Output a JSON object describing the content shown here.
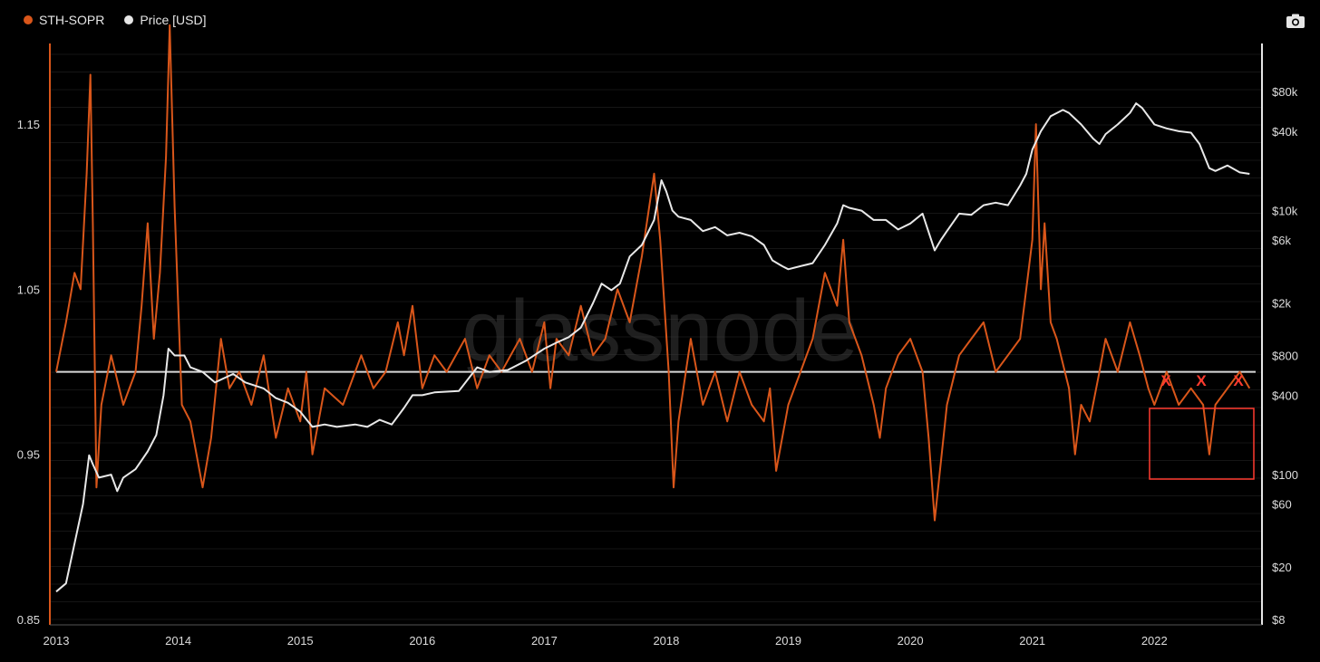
{
  "legend": [
    {
      "label": "STH-SOPR",
      "color": "#d9561a"
    },
    {
      "label": "Price [USD]",
      "color": "#e6e6e6"
    }
  ],
  "toolbar": {
    "icon": "camera-icon"
  },
  "watermark": "glassnode",
  "annotations": {
    "x_marks": [
      "X",
      "X",
      "X"
    ],
    "box": "highlight-rectangle"
  },
  "chart_data": {
    "type": "line",
    "x_ticks": [
      "2013",
      "2014",
      "2015",
      "2016",
      "2017",
      "2018",
      "2019",
      "2020",
      "2021",
      "2022"
    ],
    "xlim": [
      2013.0,
      2022.83
    ],
    "left_axis": {
      "ticks": [
        "0.85",
        "0.95",
        "1.05",
        "1.15"
      ],
      "ylim": [
        0.85,
        1.2
      ],
      "reference_line": 1.0
    },
    "right_axis": {
      "scale": "log",
      "ticks": [
        "$8",
        "$20",
        "$60",
        "$100",
        "$400",
        "$800",
        "$2k",
        "$6k",
        "$10k",
        "$40k",
        "$80k"
      ],
      "tick_values": [
        8,
        20,
        60,
        100,
        400,
        800,
        2000,
        6000,
        10000,
        40000,
        80000
      ]
    },
    "series": [
      {
        "name": "STH-SOPR",
        "color": "#d9561a",
        "axis": "left",
        "x": [
          2013.0,
          2013.08,
          2013.15,
          2013.2,
          2013.25,
          2013.28,
          2013.3,
          2013.33,
          2013.37,
          2013.45,
          2013.55,
          2013.65,
          2013.7,
          2013.75,
          2013.8,
          2013.85,
          2013.9,
          2013.93,
          2013.97,
          2014.03,
          2014.1,
          2014.2,
          2014.27,
          2014.35,
          2014.42,
          2014.5,
          2014.6,
          2014.7,
          2014.8,
          2014.9,
          2015.0,
          2015.05,
          2015.1,
          2015.2,
          2015.35,
          2015.5,
          2015.6,
          2015.7,
          2015.8,
          2015.85,
          2015.92,
          2016.0,
          2016.1,
          2016.2,
          2016.35,
          2016.45,
          2016.55,
          2016.65,
          2016.8,
          2016.9,
          2017.0,
          2017.05,
          2017.1,
          2017.2,
          2017.3,
          2017.4,
          2017.5,
          2017.6,
          2017.7,
          2017.8,
          2017.9,
          2017.95,
          2018.02,
          2018.06,
          2018.1,
          2018.2,
          2018.3,
          2018.4,
          2018.5,
          2018.6,
          2018.7,
          2018.8,
          2018.85,
          2018.9,
          2019.0,
          2019.1,
          2019.2,
          2019.3,
          2019.4,
          2019.45,
          2019.5,
          2019.6,
          2019.7,
          2019.75,
          2019.8,
          2019.9,
          2020.0,
          2020.1,
          2020.15,
          2020.2,
          2020.3,
          2020.4,
          2020.5,
          2020.6,
          2020.7,
          2020.8,
          2020.9,
          2020.95,
          2021.0,
          2021.03,
          2021.07,
          2021.1,
          2021.15,
          2021.2,
          2021.3,
          2021.35,
          2021.4,
          2021.47,
          2021.55,
          2021.6,
          2021.7,
          2021.8,
          2021.88,
          2021.95,
          2022.0,
          2022.1,
          2022.2,
          2022.3,
          2022.4,
          2022.45,
          2022.5,
          2022.6,
          2022.7,
          2022.78
        ],
        "y": [
          1.0,
          1.03,
          1.06,
          1.05,
          1.12,
          1.18,
          1.09,
          0.93,
          0.98,
          1.01,
          0.98,
          1.0,
          1.04,
          1.09,
          1.02,
          1.06,
          1.13,
          1.21,
          1.1,
          0.98,
          0.97,
          0.93,
          0.96,
          1.02,
          0.99,
          1.0,
          0.98,
          1.01,
          0.96,
          0.99,
          0.97,
          1.0,
          0.95,
          0.99,
          0.98,
          1.01,
          0.99,
          1.0,
          1.03,
          1.01,
          1.04,
          0.99,
          1.01,
          1.0,
          1.02,
          0.99,
          1.01,
          1.0,
          1.02,
          1.0,
          1.03,
          0.99,
          1.02,
          1.01,
          1.04,
          1.01,
          1.02,
          1.05,
          1.03,
          1.07,
          1.12,
          1.08,
          1.0,
          0.93,
          0.97,
          1.02,
          0.98,
          1.0,
          0.97,
          1.0,
          0.98,
          0.97,
          0.99,
          0.94,
          0.98,
          1.0,
          1.02,
          1.06,
          1.04,
          1.08,
          1.03,
          1.01,
          0.98,
          0.96,
          0.99,
          1.01,
          1.02,
          1.0,
          0.96,
          0.91,
          0.98,
          1.01,
          1.02,
          1.03,
          1.0,
          1.01,
          1.02,
          1.05,
          1.08,
          1.15,
          1.05,
          1.09,
          1.03,
          1.02,
          0.99,
          0.95,
          0.98,
          0.97,
          1.0,
          1.02,
          1.0,
          1.03,
          1.01,
          0.99,
          0.98,
          1.0,
          0.98,
          0.99,
          0.98,
          0.95,
          0.98,
          0.99,
          1.0,
          0.99
        ]
      },
      {
        "name": "Price [USD]",
        "color": "#e8e8e8",
        "axis": "right",
        "x": [
          2013.0,
          2013.08,
          2013.15,
          2013.22,
          2013.27,
          2013.3,
          2013.35,
          2013.45,
          2013.5,
          2013.55,
          2013.65,
          2013.75,
          2013.82,
          2013.88,
          2013.92,
          2013.97,
          2014.05,
          2014.1,
          2014.2,
          2014.3,
          2014.45,
          2014.55,
          2014.7,
          2014.8,
          2014.9,
          2015.0,
          2015.1,
          2015.2,
          2015.3,
          2015.45,
          2015.55,
          2015.65,
          2015.75,
          2015.85,
          2015.92,
          2016.0,
          2016.1,
          2016.3,
          2016.45,
          2016.55,
          2016.7,
          2016.85,
          2017.0,
          2017.1,
          2017.2,
          2017.3,
          2017.4,
          2017.47,
          2017.55,
          2017.62,
          2017.7,
          2017.8,
          2017.9,
          2017.96,
          2018.0,
          2018.05,
          2018.1,
          2018.2,
          2018.3,
          2018.4,
          2018.5,
          2018.6,
          2018.7,
          2018.8,
          2018.87,
          2018.95,
          2019.0,
          2019.1,
          2019.2,
          2019.3,
          2019.4,
          2019.45,
          2019.5,
          2019.6,
          2019.7,
          2019.8,
          2019.9,
          2020.0,
          2020.1,
          2020.2,
          2020.25,
          2020.3,
          2020.4,
          2020.5,
          2020.6,
          2020.7,
          2020.8,
          2020.9,
          2020.95,
          2021.0,
          2021.07,
          2021.15,
          2021.25,
          2021.3,
          2021.4,
          2021.5,
          2021.55,
          2021.6,
          2021.7,
          2021.8,
          2021.85,
          2021.9,
          2022.0,
          2022.1,
          2022.2,
          2022.3,
          2022.37,
          2022.45,
          2022.5,
          2022.6,
          2022.7,
          2022.78
        ],
        "y": [
          13,
          15,
          30,
          60,
          140,
          120,
          95,
          100,
          75,
          95,
          110,
          150,
          200,
          400,
          900,
          800,
          800,
          650,
          600,
          500,
          580,
          500,
          450,
          380,
          350,
          300,
          230,
          240,
          230,
          240,
          230,
          260,
          240,
          320,
          400,
          400,
          420,
          430,
          650,
          600,
          620,
          730,
          900,
          1000,
          1100,
          1300,
          2000,
          2800,
          2500,
          2800,
          4500,
          5500,
          8500,
          17000,
          14000,
          10000,
          9000,
          8500,
          7000,
          7500,
          6500,
          6800,
          6400,
          5500,
          4200,
          3800,
          3600,
          3800,
          4000,
          5500,
          8000,
          11000,
          10500,
          10000,
          8500,
          8500,
          7200,
          8000,
          9500,
          5000,
          6000,
          7000,
          9500,
          9300,
          11000,
          11500,
          11000,
          15500,
          19000,
          29000,
          40000,
          52000,
          58000,
          55000,
          45000,
          35000,
          32000,
          38000,
          45000,
          55000,
          65000,
          60000,
          45000,
          42000,
          40000,
          39000,
          32000,
          21000,
          20000,
          22000,
          19500,
          19000
        ]
      }
    ]
  }
}
